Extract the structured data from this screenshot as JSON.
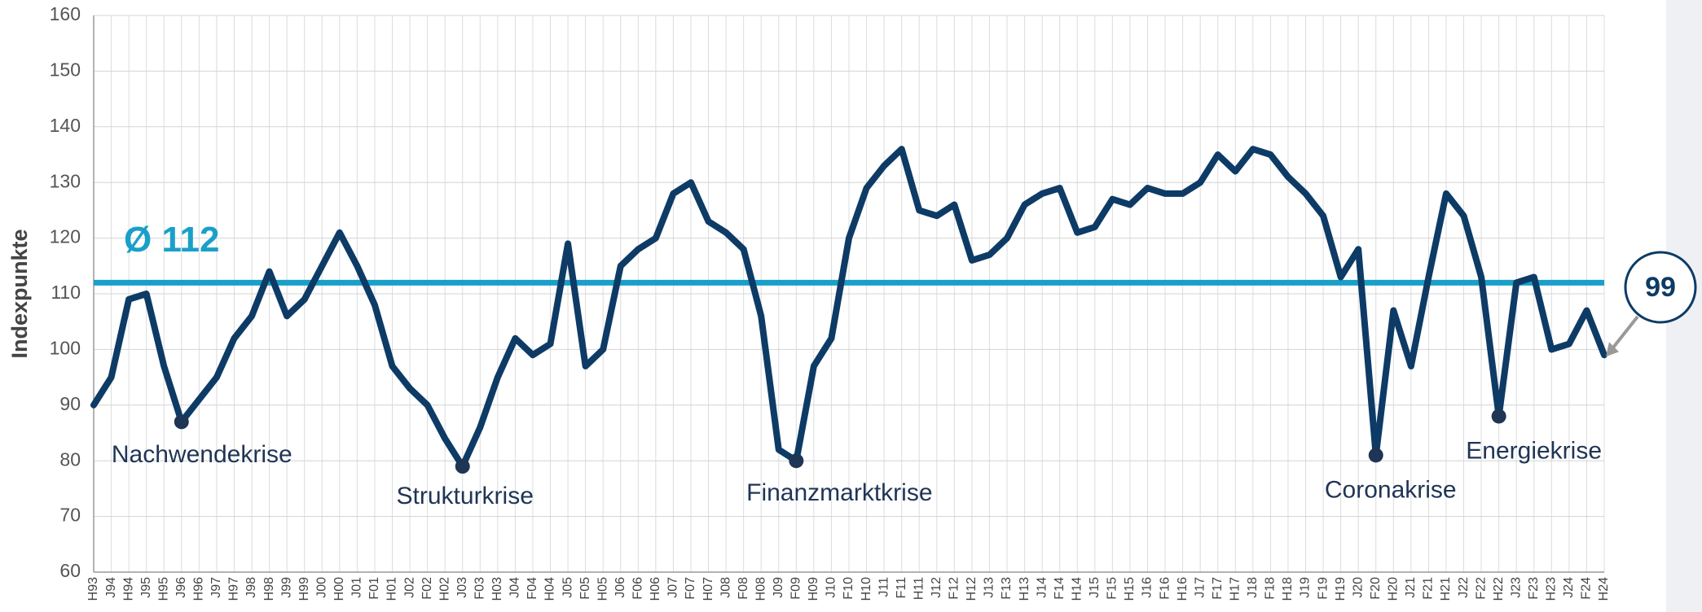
{
  "chart_data": {
    "type": "line",
    "y_label": "Indexpunkte",
    "categories": [
      "H93",
      "J94",
      "H94",
      "J95",
      "H95",
      "J96",
      "H96",
      "J97",
      "H97",
      "J98",
      "H98",
      "J99",
      "H99",
      "J00",
      "H00",
      "J01",
      "F01",
      "H01",
      "J02",
      "F02",
      "H02",
      "J03",
      "F03",
      "H03",
      "J04",
      "F04",
      "H04",
      "J05",
      "F05",
      "H05",
      "J06",
      "F06",
      "H06",
      "J07",
      "F07",
      "H07",
      "J08",
      "F08",
      "H08",
      "J09",
      "F09",
      "H09",
      "J10",
      "F10",
      "H10",
      "J11",
      "F11",
      "H11",
      "J12",
      "F12",
      "H12",
      "J13",
      "F13",
      "H13",
      "J14",
      "F14",
      "H14",
      "J15",
      "F15",
      "H15",
      "J16",
      "F16",
      "H16",
      "J17",
      "F17",
      "H17",
      "J18",
      "F18",
      "H18",
      "J19",
      "F19",
      "H19",
      "J20",
      "F20",
      "H20",
      "J21",
      "F21",
      "H21",
      "J22",
      "F22",
      "H22",
      "J23",
      "F23",
      "H23",
      "J24",
      "F24",
      "H24"
    ],
    "series": [
      {
        "color": "#0d3b66",
        "values": [
          90,
          95,
          109,
          110,
          97,
          87,
          91,
          95,
          102,
          106,
          114,
          106,
          109,
          115,
          121,
          115,
          108,
          97,
          93,
          90,
          84,
          79,
          86,
          95,
          102,
          99,
          101,
          119,
          97,
          100,
          115,
          118,
          120,
          128,
          130,
          123,
          121,
          118,
          106,
          82,
          80,
          97,
          102,
          120,
          129,
          133,
          136,
          125,
          124,
          126,
          116,
          117,
          120,
          126,
          128,
          129,
          121,
          122,
          127,
          126,
          129,
          128,
          128,
          130,
          135,
          132,
          136,
          135,
          131,
          128,
          124,
          113,
          118,
          81,
          107,
          97,
          113,
          128,
          124,
          113,
          88,
          112,
          113,
          100,
          101,
          107,
          99
        ]
      }
    ],
    "average": 112,
    "average_label": "Ø 112",
    "average_color": "#1aa0c8",
    "annotations": [
      {
        "label": "Nachwendekrise",
        "category": "J96"
      },
      {
        "label": "Strukturkrise",
        "category": "J03"
      },
      {
        "label": "Finanzmarktkrise",
        "category": "F09"
      },
      {
        "label": "Coronakrise",
        "category": "F20"
      },
      {
        "label": "Energiekrise",
        "category": "H22"
      }
    ],
    "ylim": [
      60,
      160
    ],
    "yticks": [
      60,
      70,
      80,
      90,
      100,
      110,
      120,
      130,
      140,
      150,
      160
    ],
    "grid": true
  }
}
